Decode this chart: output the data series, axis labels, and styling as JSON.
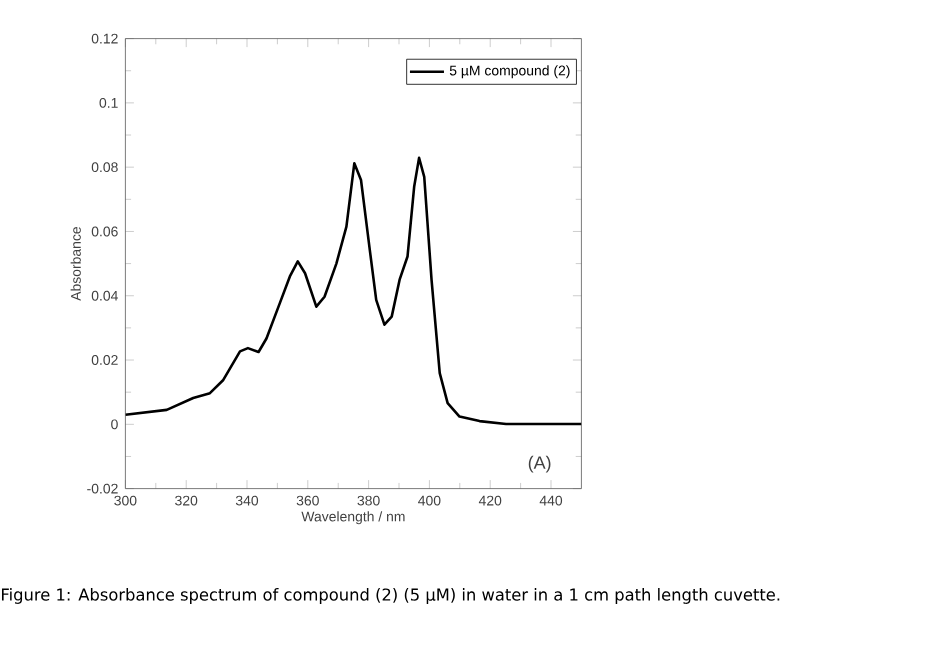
{
  "chart_data": {
    "type": "line",
    "xlabel": "Wavelength / nm",
    "ylabel": "Absorbance",
    "xlim": [
      300,
      450
    ],
    "ylim": [
      -0.02,
      0.12
    ],
    "xticks": [
      300,
      320,
      340,
      360,
      380,
      400,
      420,
      440
    ],
    "yticks": [
      -0.02,
      0,
      0.02,
      0.04,
      0.06,
      0.08,
      0.1,
      0.12
    ],
    "legend": "top right",
    "marker": "none",
    "line_style": "solid",
    "series": [
      {
        "name": "5 µM compound (2)",
        "color": "#000000",
        "x": [
          300,
          313.6,
          322.3,
          327.8,
          332.2,
          337.7,
          340.3,
          343.8,
          346.4,
          350.8,
          354.1,
          356.7,
          359.1,
          362.8,
          365.5,
          369.4,
          372.7,
          375.3,
          377.5,
          380.4,
          382.5,
          385.2,
          387.6,
          390.2,
          392.8,
          395,
          396.6,
          398.3,
          400.7,
          403.4,
          406,
          409.9,
          416.5,
          425.2,
          450
        ],
        "values": [
          0.003,
          0.0045,
          0.0082,
          0.0097,
          0.0138,
          0.0227,
          0.0237,
          0.0225,
          0.0267,
          0.0377,
          0.046,
          0.0507,
          0.047,
          0.0366,
          0.0397,
          0.05,
          0.0615,
          0.0812,
          0.076,
          0.0542,
          0.0387,
          0.031,
          0.0335,
          0.045,
          0.0522,
          0.074,
          0.0829,
          0.077,
          0.045,
          0.0159,
          0.0066,
          0.0024,
          0.001,
          0.0001,
          0.0001
        ]
      }
    ],
    "annotations": [
      "(A)",
      "Figure 1: Absorbance spectrum of compound (2) (5 µM) in water in a 1 cm path length cuvette."
    ]
  }
}
